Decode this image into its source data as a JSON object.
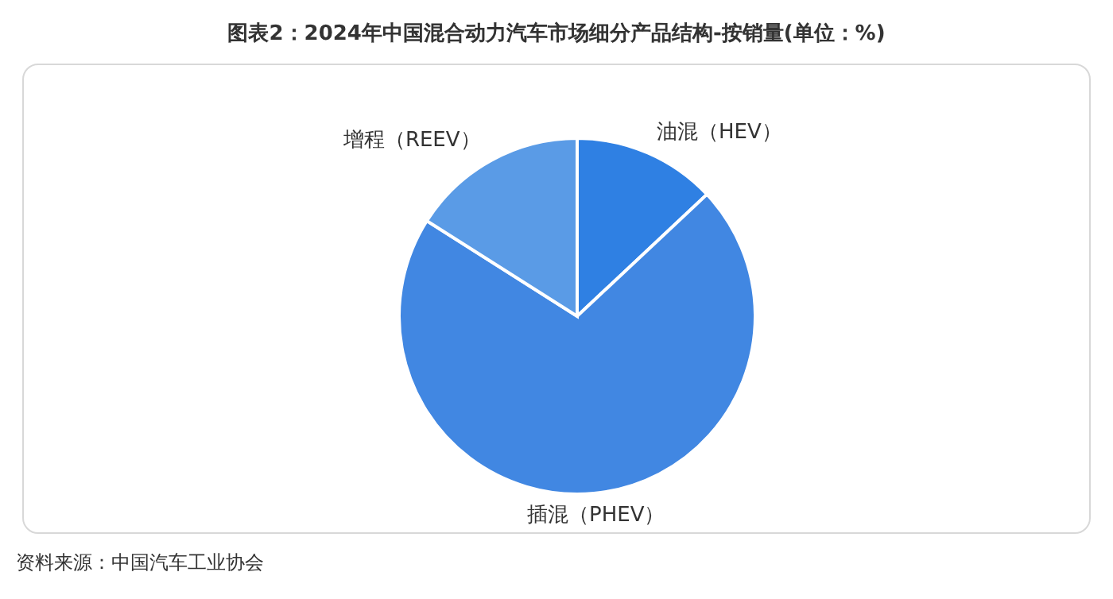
{
  "chart_data": {
    "type": "pie",
    "title": "图表2：2024年中国混合动力汽车市场细分产品结构-按销量(单位：%)",
    "categories": [
      "油混（HEV）",
      "插混（PHEV）",
      "增程（REEV）"
    ],
    "values": [
      13,
      71,
      16
    ],
    "colors": [
      "#2f80e3",
      "#4187e2",
      "#5a9be6"
    ],
    "annotations": [
      "资料来源：中国汽车工业协会"
    ]
  }
}
